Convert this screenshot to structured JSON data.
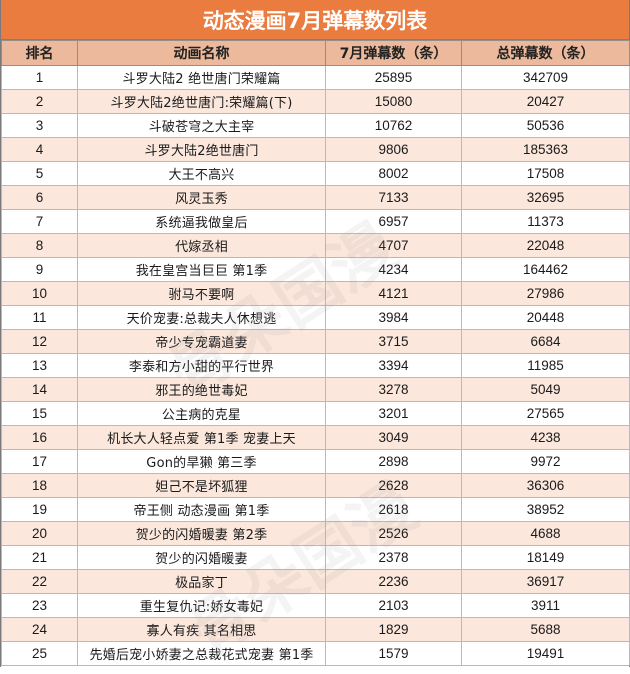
{
  "title": "动态漫画7月弹幕数列表",
  "headers": {
    "rank": "排名",
    "name": "动画名称",
    "july": "7月弹幕数（条）",
    "total": "总弹幕数（条）"
  },
  "watermark": "骨朵国漫",
  "rows": [
    {
      "rank": "1",
      "name": "斗罗大陆2 绝世唐门荣耀篇",
      "july": "25895",
      "total": "342709"
    },
    {
      "rank": "2",
      "name": "斗罗大陆2绝世唐门:荣耀篇(下)",
      "july": "15080",
      "total": "20427"
    },
    {
      "rank": "3",
      "name": "斗破苍穹之大主宰",
      "july": "10762",
      "total": "50536"
    },
    {
      "rank": "4",
      "name": "斗罗大陆2绝世唐门",
      "july": "9806",
      "total": "185363"
    },
    {
      "rank": "5",
      "name": "大王不高兴",
      "july": "8002",
      "total": "17508"
    },
    {
      "rank": "6",
      "name": "风灵玉秀",
      "july": "7133",
      "total": "32695"
    },
    {
      "rank": "7",
      "name": "系统逼我做皇后",
      "july": "6957",
      "total": "11373"
    },
    {
      "rank": "8",
      "name": "代嫁丞相",
      "july": "4707",
      "total": "22048"
    },
    {
      "rank": "9",
      "name": "我在皇宫当巨巨 第1季",
      "july": "4234",
      "total": "164462"
    },
    {
      "rank": "10",
      "name": "驸马不要啊",
      "july": "4121",
      "total": "27986"
    },
    {
      "rank": "11",
      "name": "天价宠妻:总裁夫人休想逃",
      "july": "3984",
      "total": "20448"
    },
    {
      "rank": "12",
      "name": "帝少专宠霸道妻",
      "july": "3715",
      "total": "6684"
    },
    {
      "rank": "13",
      "name": "李泰和方小甜的平行世界",
      "july": "3394",
      "total": "11985"
    },
    {
      "rank": "14",
      "name": "邪王的绝世毒妃",
      "july": "3278",
      "total": "5049"
    },
    {
      "rank": "15",
      "name": "公主病的克星",
      "july": "3201",
      "total": "27565"
    },
    {
      "rank": "16",
      "name": "机长大人轻点爱 第1季 宠妻上天",
      "july": "3049",
      "total": "4238"
    },
    {
      "rank": "17",
      "name": "Gon的旱獭 第三季",
      "july": "2898",
      "total": "9972"
    },
    {
      "rank": "18",
      "name": "妲己不是坏狐狸",
      "july": "2628",
      "total": "36306"
    },
    {
      "rank": "19",
      "name": "帝王侧 动态漫画 第1季",
      "july": "2618",
      "total": "38952"
    },
    {
      "rank": "20",
      "name": "贺少的闪婚暖妻 第2季",
      "july": "2526",
      "total": "4688"
    },
    {
      "rank": "21",
      "name": "贺少的闪婚暖妻",
      "july": "2378",
      "total": "18149"
    },
    {
      "rank": "22",
      "name": "极品家丁",
      "july": "2236",
      "total": "36917"
    },
    {
      "rank": "23",
      "name": "重生复仇记:娇女毒妃",
      "july": "2103",
      "total": "3911"
    },
    {
      "rank": "24",
      "name": "寡人有疾 其名相思",
      "july": "1829",
      "total": "5688"
    },
    {
      "rank": "25",
      "name": "先婚后宠小娇妻之总裁花式宠妻 第1季",
      "july": "1579",
      "total": "19491"
    }
  ]
}
